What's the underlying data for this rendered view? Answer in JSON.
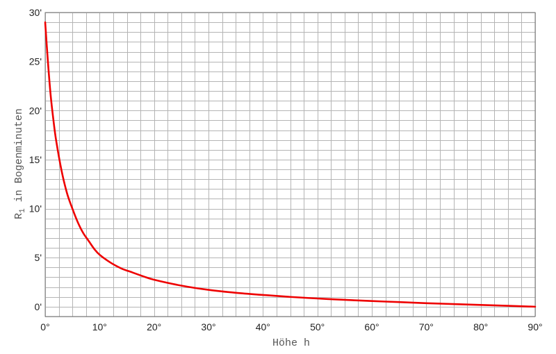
{
  "chart_data": {
    "type": "line",
    "title": "",
    "xlabel": "Höhe h",
    "ylabel": "R",
    "ylabel_subscript": "1",
    "ylabel_suffix": " in Bogenminuten",
    "xlim": [
      0,
      90
    ],
    "ylim": [
      -1,
      30
    ],
    "x_ticks": [
      0,
      10,
      20,
      30,
      40,
      50,
      60,
      70,
      80,
      90
    ],
    "x_tick_labels": [
      "0°",
      "10°",
      "20°",
      "30°",
      "40°",
      "50°",
      "60°",
      "70°",
      "80°",
      "90°"
    ],
    "y_ticks": [
      0,
      5,
      10,
      15,
      20,
      25,
      30
    ],
    "y_tick_labels": [
      "0'",
      "5'",
      "10'",
      "15'",
      "20'",
      "25'",
      "30'"
    ],
    "grid": true,
    "line_color": "#ee0000",
    "grid_color": "#b4b4b4",
    "series": [
      {
        "x": [
          0,
          0.5,
          1,
          1.5,
          2,
          3,
          4,
          5,
          6,
          7,
          8,
          9,
          10,
          12,
          14,
          16,
          18,
          20,
          25,
          30,
          35,
          40,
          45,
          50,
          55,
          60,
          65,
          70,
          75,
          80,
          85,
          90
        ],
        "values": [
          29.0,
          25.0,
          21.6,
          19.1,
          17.0,
          13.9,
          11.6,
          10.0,
          8.6,
          7.5,
          6.7,
          5.9,
          5.3,
          4.5,
          3.9,
          3.5,
          3.1,
          2.75,
          2.15,
          1.72,
          1.42,
          1.2,
          1.0,
          0.84,
          0.7,
          0.58,
          0.47,
          0.36,
          0.27,
          0.18,
          0.09,
          0.0
        ]
      }
    ]
  }
}
